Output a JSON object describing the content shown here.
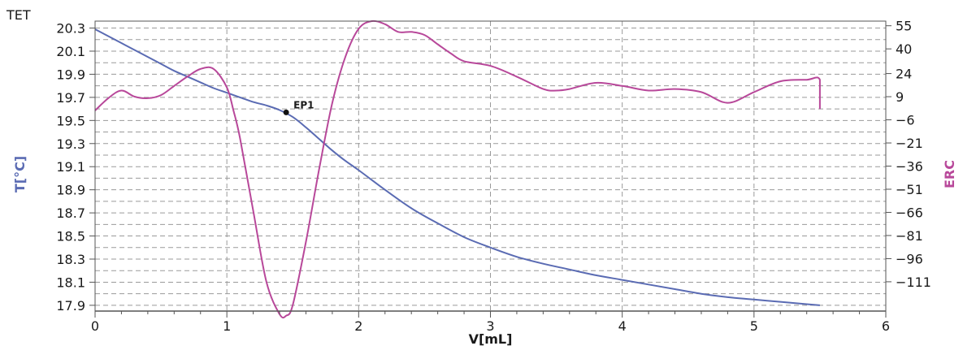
{
  "corner_label": "TET",
  "colors": {
    "temperature": "#5a6bb3",
    "erc": "#b8489a",
    "grid": "#9a9a9a",
    "axis": "#555555"
  },
  "chart_data": {
    "type": "line",
    "xlabel": "V[mL]",
    "ylabel_left": "T[°C]",
    "ylabel_right": "ERC",
    "xlim": [
      0,
      6
    ],
    "ylim_left": [
      17.85,
      20.36
    ],
    "ylim_right": [
      -130,
      58
    ],
    "x_ticks": [
      "0",
      "1",
      "2",
      "3",
      "4",
      "5",
      "6"
    ],
    "y_left_ticks": [
      "20.3",
      "20.1",
      "19.9",
      "19.7",
      "19.5",
      "19.3",
      "19.1",
      "18.9",
      "18.7",
      "18.5",
      "18.3",
      "18.1",
      "17.9"
    ],
    "y_right_ticks": [
      "55",
      "40",
      "24",
      "9",
      "−6",
      "−21",
      "−36",
      "−51",
      "−66",
      "−81",
      "−96",
      "−111"
    ],
    "grid": true,
    "series": [
      {
        "name": "T[°C]",
        "axis": "left",
        "x": [
          0,
          0.1,
          0.2,
          0.3,
          0.4,
          0.5,
          0.6,
          0.7,
          0.8,
          0.9,
          1.0,
          1.1,
          1.2,
          1.3,
          1.4,
          1.5,
          1.6,
          1.7,
          1.8,
          1.9,
          2.0,
          2.2,
          2.4,
          2.6,
          2.8,
          3.0,
          3.2,
          3.4,
          3.6,
          3.8,
          4.0,
          4.2,
          4.4,
          4.6,
          4.8,
          5.0,
          5.2,
          5.4,
          5.5
        ],
        "values": [
          20.29,
          20.23,
          20.17,
          20.11,
          20.05,
          19.99,
          19.93,
          19.88,
          19.83,
          19.78,
          19.74,
          19.7,
          19.66,
          19.63,
          19.59,
          19.53,
          19.44,
          19.34,
          19.24,
          19.15,
          19.07,
          18.9,
          18.74,
          18.61,
          18.49,
          18.4,
          18.32,
          18.26,
          18.21,
          18.16,
          18.12,
          18.08,
          18.04,
          18.0,
          17.97,
          17.95,
          17.93,
          17.91,
          17.9
        ]
      },
      {
        "name": "ERC",
        "axis": "right",
        "x": [
          0,
          0.1,
          0.2,
          0.3,
          0.4,
          0.5,
          0.6,
          0.7,
          0.8,
          0.9,
          1.0,
          1.05,
          1.1,
          1.2,
          1.3,
          1.4,
          1.45,
          1.5,
          1.6,
          1.7,
          1.8,
          1.9,
          2.0,
          2.1,
          2.2,
          2.3,
          2.4,
          2.5,
          2.6,
          2.7,
          2.8,
          3.0,
          3.2,
          3.4,
          3.5,
          3.6,
          3.8,
          4.0,
          4.2,
          4.4,
          4.6,
          4.8,
          5.0,
          5.2,
          5.4,
          5.5,
          5.5
        ],
        "values": [
          0,
          8,
          13,
          9,
          8,
          10,
          16,
          22,
          27,
          27,
          15,
          0,
          -18,
          -65,
          -111,
          -132,
          -133,
          -126,
          -85,
          -38,
          5,
          35,
          53,
          58,
          56,
          51,
          51,
          49,
          43,
          37,
          32,
          29,
          22,
          14,
          13,
          14,
          18,
          16,
          13,
          14,
          12,
          5,
          12,
          19,
          20,
          20,
          1
        ]
      }
    ],
    "annotations": [
      {
        "text": "EP1",
        "x": 1.45,
        "y": 19.57,
        "axis": "left"
      }
    ]
  }
}
